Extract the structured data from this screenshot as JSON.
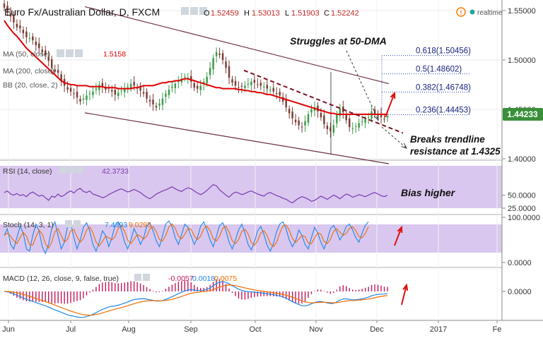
{
  "header": {
    "title": "Euro Fx/Australian Dollar, D, FXCM",
    "ohlc": {
      "o_label": "O",
      "o": "1.52459",
      "h_label": "H",
      "h": "1.53013",
      "l_label": "L",
      "l": "1.51903",
      "c_label": "C",
      "c": "1.52242"
    },
    "realtime_label": "realtime"
  },
  "legends": {
    "ma50_label": "MA (50, close)",
    "ma50_value": "1.5158",
    "ma200_label": "MA (200, close)",
    "bb_label": "BB (20, close, 2)",
    "rsi_label": "RSI (14, close)",
    "rsi_value": "42.3733",
    "stoch_label": "Stoch (14, 3, 1)",
    "stoch_k": "7.4393",
    "stoch_d": "9.0295",
    "macd_label": "MACD (12, 26, close, 9, false, true)",
    "macd_hist": "-0.0057",
    "macd_line": "0.0018",
    "macd_signal": "0.0075"
  },
  "annotations": {
    "struggles": "Struggles at 50-DMA",
    "breaks_1": "Breaks trendline",
    "breaks_2": "resistance at 1.4325",
    "bias": "Bias higher"
  },
  "colors": {
    "candle_up": "#3c9a48",
    "candle_down": "#7a3b34",
    "ma50": "#e00000",
    "channel": "#6b2d46",
    "fib": "#2a3fbf",
    "annotation_arrow": "#e01010",
    "indicator_bg": "#d9c7ef",
    "rsi_line": "#7b3bb0",
    "stoch_k": "#1e88e5",
    "stoch_d": "#ef6c00",
    "macd_line": "#1e88e5",
    "macd_signal": "#ef6c00",
    "macd_hist": "#c2185b",
    "price_tag": "#3a8f3a"
  },
  "chart_data": {
    "type": "candlestick",
    "symbol": "EUR/AUD",
    "timeframe": "D",
    "y_ticks": [
      "1.55000",
      "1.50000",
      "1.45000",
      "1.40000"
    ],
    "ylim": [
      1.4,
      1.56
    ],
    "last_price": "1.44233",
    "x_ticks": [
      "Jun",
      "Jul",
      "Aug",
      "Sep",
      "Oct",
      "Nov",
      "Dec",
      "2017",
      "Fe"
    ],
    "fib_levels": [
      {
        "ratio": "0.618",
        "price": "1.50456",
        "value": 1.50456
      },
      {
        "ratio": "0.5",
        "price": "1.48602",
        "value": 1.48602
      },
      {
        "ratio": "0.382",
        "price": "1.46748",
        "value": 1.46748
      },
      {
        "ratio": "0.236",
        "price": "1.44453",
        "value": 1.44453
      }
    ],
    "trendline_resistance": 1.4325,
    "closes": [
      1.553,
      1.549,
      1.544,
      1.538,
      1.533,
      1.532,
      1.527,
      1.523,
      1.522,
      1.52,
      1.515,
      1.512,
      1.508,
      1.505,
      1.499,
      1.492,
      1.488,
      1.487,
      1.479,
      1.474,
      1.47,
      1.468,
      1.466,
      1.462,
      1.458,
      1.461,
      1.464,
      1.466,
      1.468,
      1.471,
      1.475,
      1.473,
      1.47,
      1.471,
      1.468,
      1.465,
      1.467,
      1.469,
      1.471,
      1.473,
      1.476,
      1.474,
      1.471,
      1.469,
      1.466,
      1.461,
      1.458,
      1.455,
      1.452,
      1.456,
      1.461,
      1.466,
      1.47,
      1.473,
      1.476,
      1.479,
      1.481,
      1.483,
      1.482,
      1.478,
      1.472,
      1.471,
      1.474,
      1.478,
      1.483,
      1.492,
      1.502,
      1.508,
      1.505,
      1.5,
      1.492,
      1.482,
      1.477,
      1.474,
      1.472,
      1.473,
      1.474,
      1.476,
      1.478,
      1.477,
      1.475,
      1.474,
      1.473,
      1.471,
      1.47,
      1.468,
      1.466,
      1.464,
      1.458,
      1.452,
      1.446,
      1.441,
      1.437,
      1.434,
      1.432,
      1.438,
      1.445,
      1.45,
      1.452,
      1.448,
      1.442,
      1.435,
      1.43,
      1.428,
      1.434,
      1.445,
      1.451,
      1.447,
      1.439,
      1.432,
      1.431,
      1.433,
      1.436,
      1.438,
      1.44,
      1.442,
      1.448,
      1.446,
      1.444,
      1.442,
      1.44,
      1.443
    ],
    "ma50": [
      1.54,
      1.535,
      1.531,
      1.527,
      1.524,
      1.52,
      1.516,
      1.512,
      1.509,
      1.506,
      1.503,
      1.5,
      1.497,
      1.494,
      1.491,
      1.488,
      1.485,
      1.482,
      1.479,
      1.477,
      1.476,
      1.475,
      1.475,
      1.474,
      1.474,
      1.474,
      1.474,
      1.473,
      1.473,
      1.473,
      1.473,
      1.473,
      1.472,
      1.472,
      1.472,
      1.472,
      1.471,
      1.471,
      1.471,
      1.471,
      1.471,
      1.472,
      1.472,
      1.473,
      1.474,
      1.474,
      1.474,
      1.474,
      1.475,
      1.476,
      1.477,
      1.477,
      1.478,
      1.478,
      1.479,
      1.479,
      1.48,
      1.481,
      1.481,
      1.48,
      1.479,
      1.478,
      1.477,
      1.476,
      1.475,
      1.474,
      1.473,
      1.472,
      1.472,
      1.471,
      1.471,
      1.471,
      1.471,
      1.471,
      1.47,
      1.47,
      1.469,
      1.469,
      1.468,
      1.468,
      1.467,
      1.467,
      1.466,
      1.465,
      1.465,
      1.464,
      1.463,
      1.462,
      1.461,
      1.46,
      1.459,
      1.458,
      1.457,
      1.456,
      1.455,
      1.454,
      1.453,
      1.452,
      1.451,
      1.45,
      1.449,
      1.448,
      1.447,
      1.446,
      1.446,
      1.445,
      1.445,
      1.445,
      1.445,
      1.445,
      1.445,
      1.445,
      1.445,
      1.445,
      1.445,
      1.445,
      1.445,
      1.445,
      1.445,
      1.445,
      1.445,
      1.445
    ],
    "rsi": [
      55,
      58,
      52,
      50,
      53,
      49,
      51,
      47,
      53,
      56,
      52,
      48,
      50,
      45,
      40,
      48,
      46,
      52,
      47,
      50,
      55,
      58,
      54,
      60,
      63,
      57,
      55,
      58,
      52,
      50,
      48,
      45,
      47,
      51,
      54,
      57,
      60,
      62,
      59,
      56,
      58,
      61,
      58,
      55,
      50,
      46,
      43,
      47,
      52,
      55,
      58,
      60,
      63,
      66,
      62,
      59,
      57,
      61,
      64,
      62,
      58,
      54,
      51,
      54,
      59,
      65,
      70,
      68,
      60,
      55,
      50,
      46,
      52,
      56,
      54,
      51,
      53,
      56,
      58,
      55,
      52,
      50,
      48,
      53,
      55,
      52,
      49,
      47,
      44,
      42,
      38,
      35,
      40,
      44,
      47,
      45,
      42,
      38,
      40,
      44,
      48,
      45,
      42,
      46,
      50,
      47,
      43,
      48,
      52,
      50,
      46,
      48,
      51,
      49,
      47,
      50,
      53,
      55,
      52,
      49,
      47,
      50
    ],
    "rsi_ticks": [
      "50.0000",
      "25.0000"
    ],
    "stoch_k": [
      60,
      75,
      40,
      30,
      55,
      80,
      65,
      30,
      25,
      60,
      85,
      70,
      35,
      20,
      40,
      75,
      90,
      60,
      30,
      45,
      80,
      85,
      55,
      30,
      50,
      78,
      88,
      70,
      40,
      25,
      45,
      70,
      60,
      35,
      55,
      82,
      90,
      72,
      45,
      30,
      50,
      75,
      60,
      40,
      55,
      80,
      88,
      70,
      48,
      35,
      60,
      85,
      92,
      80,
      55,
      40,
      62,
      85,
      78,
      58,
      40,
      55,
      80,
      90,
      72,
      50,
      35,
      58,
      82,
      88,
      70,
      45,
      30,
      50,
      72,
      85,
      65,
      40,
      28,
      46,
      70,
      80,
      62,
      38,
      25,
      42,
      68,
      85,
      90,
      74,
      50,
      35,
      48,
      72,
      60,
      40,
      30,
      55,
      78,
      65,
      45,
      30,
      50,
      75,
      82,
      68,
      50,
      62,
      80,
      85,
      72,
      55,
      45,
      65,
      82,
      90
    ],
    "stoch_ticks": [
      "100.0000",
      "0.0000"
    ],
    "macd_ticks": [
      "0.0000"
    ]
  }
}
